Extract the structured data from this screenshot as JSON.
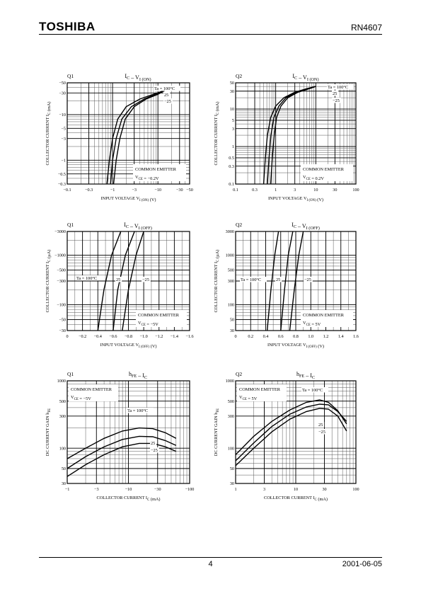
{
  "header": {
    "logo": "TOSHIBA",
    "part_number": "RN4607"
  },
  "footer": {
    "page": "4",
    "date": "2001-06-05"
  },
  "chart_data": [
    {
      "id": "c1",
      "type": "line",
      "device": "Q1",
      "title_main": "I",
      "title_sub1": "C",
      "title_mid": " – V",
      "title_sub2": "I (ON)",
      "xlabel": "INPUT VOLTAGE  V",
      "xlabel_sub": "I (ON)",
      "xlabel_unit": "  (V)",
      "ylabel": "COLLECTOR CURRENT  I",
      "ylabel_sub": "C",
      "ylabel_unit": "  (mA)",
      "xscale": "log",
      "yscale": "log",
      "xlim": [
        0.1,
        50
      ],
      "ylim": [
        0.3,
        50
      ],
      "xticks": [
        0.1,
        0.3,
        1,
        3,
        10,
        30,
        50
      ],
      "xticklabels": [
        "−0.1",
        "−0.3",
        "−1",
        "−3",
        "−10",
        "−30",
        "−50"
      ],
      "yticks": [
        0.3,
        0.5,
        1,
        3,
        5,
        10,
        30,
        50
      ],
      "yticklabels": [
        "−0.3",
        "−0.5",
        "−1",
        "−3",
        "−5",
        "−10",
        "−30",
        "−50"
      ],
      "info_lines": [
        "COMMON EMITTER",
        "V_CE = −0.2V"
      ],
      "series": [
        {
          "name": "Ta = 100°C",
          "x": [
            0.75,
            0.85,
            1.0,
            1.3,
            2.0,
            4.0,
            8.0,
            15.0
          ],
          "y": [
            0.3,
            1.0,
            3.0,
            8.0,
            15.0,
            22.0,
            28.0,
            35.0
          ]
        },
        {
          "name": "25",
          "x": [
            0.9,
            1.0,
            1.2,
            1.6,
            2.6,
            5.0,
            9.0,
            15.0
          ],
          "y": [
            0.3,
            1.0,
            3.0,
            8.0,
            15.0,
            22.0,
            28.0,
            35.0
          ]
        },
        {
          "name": "−25",
          "x": [
            1.05,
            1.2,
            1.45,
            1.9,
            3.0,
            5.5,
            10.0,
            15.0
          ],
          "y": [
            0.3,
            1.0,
            3.0,
            8.0,
            15.0,
            22.0,
            28.0,
            35.0
          ]
        }
      ]
    },
    {
      "id": "c2",
      "type": "line",
      "device": "Q2",
      "title_main": "I",
      "title_sub1": "C",
      "title_mid": " – V",
      "title_sub2": "I (ON)",
      "xlabel": "INPUT VOLTAGE  V",
      "xlabel_sub": "I (ON)",
      "xlabel_unit": "  (V)",
      "ylabel": "COLLECTOR CURRENT  I",
      "ylabel_sub": "C",
      "ylabel_unit": "  (mA)",
      "xscale": "log",
      "yscale": "log",
      "xlim": [
        0.1,
        100
      ],
      "ylim": [
        0.1,
        50
      ],
      "xticks": [
        0.1,
        0.3,
        1,
        3,
        10,
        30,
        100
      ],
      "xticklabels": [
        "0.1",
        "0.3",
        "1",
        "3",
        "10",
        "30",
        "100"
      ],
      "yticks": [
        0.1,
        0.3,
        0.5,
        1,
        3,
        5,
        10,
        30,
        50
      ],
      "yticklabels": [
        "0.1",
        "0.3",
        "0.5",
        "1",
        "3",
        "5",
        "10",
        "30",
        "50"
      ],
      "info_lines": [
        "COMMON EMITTER",
        "V_CE = 0.2V"
      ],
      "series": [
        {
          "name": "Ta = 100°C",
          "x": [
            0.5,
            0.55,
            0.62,
            0.75,
            1.0,
            1.6,
            3.0,
            6.0,
            10.0
          ],
          "y": [
            0.1,
            0.5,
            2.0,
            6.0,
            12.0,
            20.0,
            28.0,
            35.0,
            40.0
          ]
        },
        {
          "name": "25",
          "x": [
            0.62,
            0.68,
            0.76,
            0.9,
            1.2,
            1.8,
            3.3,
            6.5,
            10.0
          ],
          "y": [
            0.1,
            0.5,
            2.0,
            6.0,
            12.0,
            20.0,
            28.0,
            35.0,
            40.0
          ]
        },
        {
          "name": "−25",
          "x": [
            0.75,
            0.82,
            0.92,
            1.05,
            1.35,
            2.0,
            3.6,
            7.0,
            10.0
          ],
          "y": [
            0.1,
            0.5,
            2.0,
            6.0,
            12.0,
            20.0,
            28.0,
            35.0,
            40.0
          ]
        }
      ]
    },
    {
      "id": "c3",
      "type": "line",
      "device": "Q1",
      "title_main": "I",
      "title_sub1": "C",
      "title_mid": " – V",
      "title_sub2": "I (OFF)",
      "xlabel": "INPUT VOLTAGE  V",
      "xlabel_sub": "I (OFF)",
      "xlabel_unit": "  (V)",
      "ylabel": "COLLECTOR CURRENT  I",
      "ylabel_sub": "C",
      "ylabel_unit": "  (µA)",
      "xscale": "linear",
      "yscale": "log",
      "xlim": [
        0,
        1.6
      ],
      "ylim": [
        30,
        3000
      ],
      "xticks": [
        0,
        0.2,
        0.4,
        0.6,
        0.8,
        1.0,
        1.2,
        1.4,
        1.6
      ],
      "xticklabels": [
        "0",
        "−0.2",
        "−0.4",
        "−0.6",
        "−0.8",
        "−1.0",
        "−1.2",
        "−1.4",
        "−1.6"
      ],
      "yticks": [
        30,
        50,
        100,
        300,
        500,
        1000,
        3000
      ],
      "yticklabels": [
        "−30",
        "−50",
        "−100",
        "−300",
        "−500",
        "−1000",
        "−3000"
      ],
      "info_lines": [
        "COMMON EMITTER",
        "V_CE = −5V"
      ],
      "series": [
        {
          "name": "Ta = 100°C",
          "x": [
            0.4,
            0.48,
            0.58,
            0.7
          ],
          "y": [
            30,
            200,
            1000,
            3000
          ]
        },
        {
          "name": "25",
          "x": [
            0.6,
            0.66,
            0.76,
            0.88
          ],
          "y": [
            30,
            200,
            1000,
            3000
          ]
        },
        {
          "name": "−25",
          "x": [
            0.72,
            0.8,
            0.9,
            1.0
          ],
          "y": [
            30,
            200,
            1000,
            3000
          ]
        }
      ]
    },
    {
      "id": "c4",
      "type": "line",
      "device": "Q2",
      "title_main": "I",
      "title_sub1": "C",
      "title_mid": " – V",
      "title_sub2": "I (OFF)",
      "xlabel": "INPUT VOLTAGE  V",
      "xlabel_sub": "I (OFF)",
      "xlabel_unit": "  (V)",
      "ylabel": "COLLECTOR CURRENT  I",
      "ylabel_sub": "C",
      "ylabel_unit": "  (µA)",
      "xscale": "linear",
      "yscale": "log",
      "xlim": [
        0,
        1.6
      ],
      "ylim": [
        30,
        3000
      ],
      "xticks": [
        0,
        0.2,
        0.4,
        0.6,
        0.8,
        1.0,
        1.2,
        1.4,
        1.6
      ],
      "xticklabels": [
        "0",
        "0.2",
        "0.4",
        "0.6",
        "0.8",
        "1.0",
        "1.2",
        "1.4",
        "1.6"
      ],
      "yticks": [
        30,
        50,
        100,
        300,
        500,
        1000,
        3000
      ],
      "yticklabels": [
        "30",
        "50",
        "100",
        "300",
        "500",
        "1000",
        "3000"
      ],
      "info_lines": [
        "COMMON EMITTER",
        "V_CE = 5V"
      ],
      "series": [
        {
          "name": "Ta = 100°C",
          "x": [
            0.42,
            0.47,
            0.52,
            0.57
          ],
          "y": [
            30,
            200,
            1000,
            3000
          ]
        },
        {
          "name": "25",
          "x": [
            0.6,
            0.65,
            0.7,
            0.76
          ],
          "y": [
            30,
            200,
            1000,
            3000
          ]
        },
        {
          "name": "−25",
          "x": [
            0.72,
            0.78,
            0.84,
            0.9
          ],
          "y": [
            30,
            200,
            1000,
            3000
          ]
        }
      ]
    },
    {
      "id": "c5",
      "type": "line",
      "device": "Q1",
      "title_main": "h",
      "title_sub1": "FE",
      "title_mid": " – I",
      "title_sub2": "C",
      "xlabel": "COLLECTOR CURRENT  I",
      "xlabel_sub": "C",
      "xlabel_unit": "  (mA)",
      "ylabel": "DC CURRENT GAIN h",
      "ylabel_sub": "FE",
      "ylabel_unit": "",
      "xscale": "log",
      "yscale": "log",
      "xlim": [
        1,
        100
      ],
      "ylim": [
        30,
        1000
      ],
      "xticks": [
        1,
        3,
        10,
        30,
        100
      ],
      "xticklabels": [
        "−1",
        "−3",
        "−10",
        "−30",
        "−100"
      ],
      "yticks": [
        30,
        50,
        100,
        300,
        500,
        1000
      ],
      "yticklabels": [
        "30",
        "50",
        "100",
        "300",
        "500",
        "1000"
      ],
      "info_lines": [
        "COMMON EMITTER",
        "V_CE = −5V"
      ],
      "series": [
        {
          "name": "Ta = 100°C",
          "x": [
            1,
            2,
            4,
            8,
            15,
            25,
            40,
            60
          ],
          "y": [
            70,
            100,
            140,
            180,
            200,
            195,
            170,
            140
          ]
        },
        {
          "name": "25",
          "x": [
            1,
            2,
            4,
            8,
            15,
            25,
            40,
            60
          ],
          "y": [
            50,
            75,
            105,
            135,
            150,
            148,
            130,
            110
          ]
        },
        {
          "name": "−25",
          "x": [
            1,
            2,
            4,
            8,
            15,
            25,
            40,
            60
          ],
          "y": [
            38,
            57,
            80,
            105,
            118,
            118,
            105,
            90
          ]
        }
      ]
    },
    {
      "id": "c6",
      "type": "line",
      "device": "Q2",
      "title_main": "h",
      "title_sub1": "FE",
      "title_mid": " – I",
      "title_sub2": "C",
      "xlabel": "COLLECTOR CURRENT  I",
      "xlabel_sub": "C",
      "xlabel_unit": "  (mA)",
      "ylabel": "DC CURRENT GAIN h",
      "ylabel_sub": "FE",
      "ylabel_unit": "",
      "xscale": "log",
      "yscale": "log",
      "xlim": [
        1,
        100
      ],
      "ylim": [
        30,
        1000
      ],
      "xticks": [
        1,
        3,
        10,
        30,
        100
      ],
      "xticklabels": [
        "1",
        "3",
        "10",
        "30",
        "100"
      ],
      "yticks": [
        30,
        50,
        100,
        300,
        500,
        1000
      ],
      "yticklabels": [
        "30",
        "50",
        "100",
        "300",
        "500",
        "1000"
      ],
      "info_lines": [
        "COMMON EMITTER",
        "V_CE = 5V"
      ],
      "series": [
        {
          "name": "Ta = 100°C",
          "x": [
            1,
            2,
            4,
            8,
            15,
            25,
            35,
            50,
            70
          ],
          "y": [
            80,
            150,
            250,
            370,
            480,
            520,
            480,
            360,
            230
          ]
        },
        {
          "name": "25",
          "x": [
            1,
            2,
            4,
            8,
            15,
            25,
            35,
            50,
            70
          ],
          "y": [
            65,
            120,
            210,
            320,
            410,
            450,
            440,
            350,
            250
          ]
        },
        {
          "name": "−25",
          "x": [
            1,
            2,
            4,
            8,
            15,
            25,
            35,
            50,
            70
          ],
          "y": [
            55,
            100,
            175,
            270,
            350,
            390,
            380,
            300,
            180
          ]
        }
      ]
    }
  ]
}
